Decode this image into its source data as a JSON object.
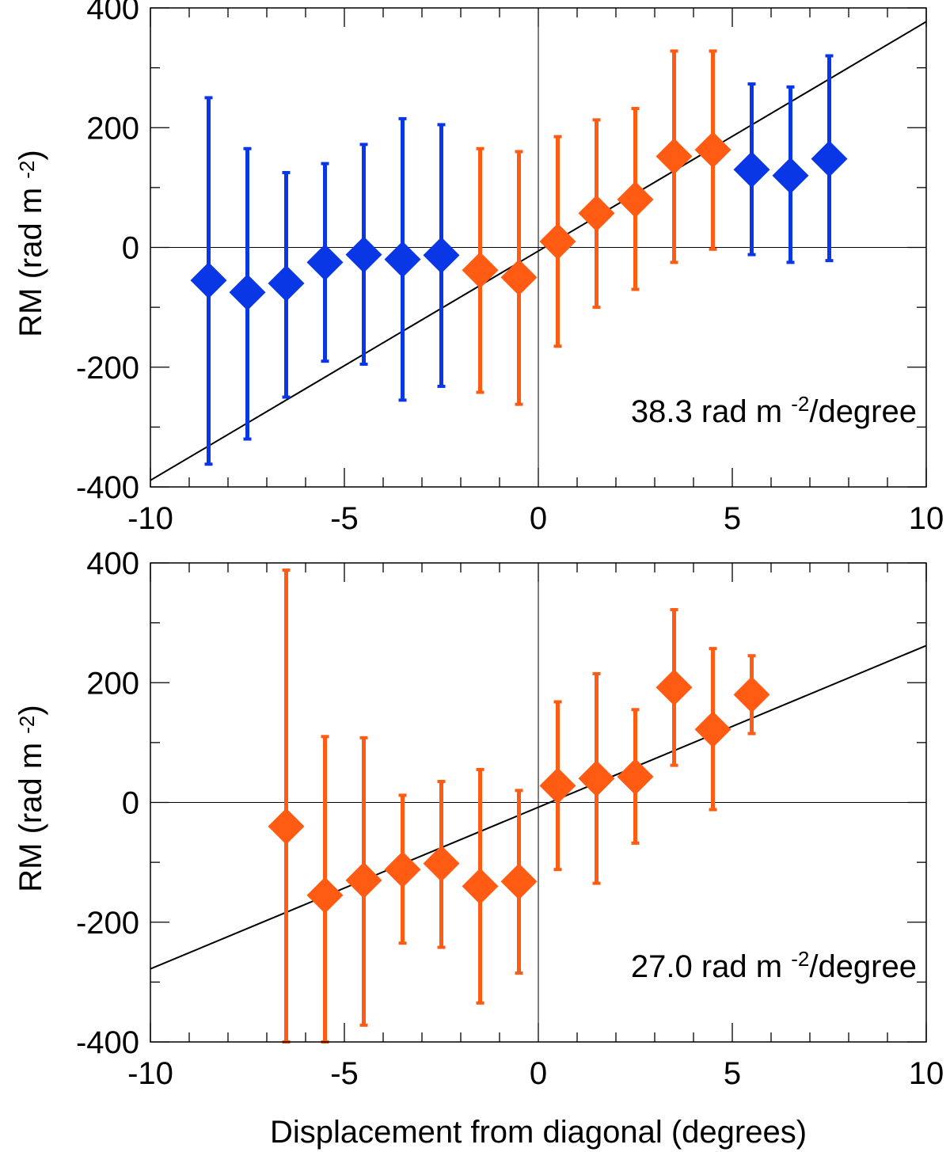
{
  "colors": {
    "blue": "#0a37e6",
    "orange": "#ff5b12",
    "axis": "#000000"
  },
  "shared_xlabel": "Displacement from diagonal (degrees)",
  "chart_data": [
    {
      "type": "scatter",
      "title": "",
      "xlabel": "",
      "ylabel": "RM (rad m -2)",
      "ylabel_parts": {
        "main": "RM (rad m",
        "sup": "-2",
        "close": ")"
      },
      "xlim": [
        -10,
        10
      ],
      "ylim": [
        -400,
        400
      ],
      "xticks": [
        -10,
        -5,
        0,
        5,
        10
      ],
      "yticks": [
        -400,
        -200,
        0,
        200,
        400
      ],
      "zero_lines": true,
      "annotation": {
        "value": "38.3",
        "unit_main": "rad m",
        "unit_sup": "-2",
        "unit_tail": "/degree"
      },
      "fit_line": {
        "slope": 38.3,
        "intercept": -6
      },
      "points": [
        {
          "x": -8.5,
          "y": -55,
          "low": -362,
          "high": 250,
          "color": "blue"
        },
        {
          "x": -7.5,
          "y": -75,
          "low": -320,
          "high": 165,
          "color": "blue"
        },
        {
          "x": -6.5,
          "y": -60,
          "low": -250,
          "high": 125,
          "color": "blue"
        },
        {
          "x": -5.5,
          "y": -25,
          "low": -190,
          "high": 140,
          "color": "blue"
        },
        {
          "x": -4.5,
          "y": -12,
          "low": -195,
          "high": 172,
          "color": "blue"
        },
        {
          "x": -3.5,
          "y": -20,
          "low": -255,
          "high": 215,
          "color": "blue"
        },
        {
          "x": -2.5,
          "y": -13,
          "low": -232,
          "high": 205,
          "color": "blue"
        },
        {
          "x": -1.5,
          "y": -38,
          "low": -242,
          "high": 165,
          "color": "orange"
        },
        {
          "x": -0.5,
          "y": -50,
          "low": -262,
          "high": 160,
          "color": "orange"
        },
        {
          "x": 0.5,
          "y": 10,
          "low": -165,
          "high": 185,
          "color": "orange"
        },
        {
          "x": 1.5,
          "y": 57,
          "low": -100,
          "high": 213,
          "color": "orange"
        },
        {
          "x": 2.5,
          "y": 80,
          "low": -70,
          "high": 232,
          "color": "orange"
        },
        {
          "x": 3.5,
          "y": 152,
          "low": -25,
          "high": 328,
          "color": "orange"
        },
        {
          "x": 4.5,
          "y": 163,
          "low": -3,
          "high": 328,
          "color": "orange"
        },
        {
          "x": 5.5,
          "y": 130,
          "low": -12,
          "high": 273,
          "color": "blue"
        },
        {
          "x": 6.5,
          "y": 120,
          "low": -25,
          "high": 268,
          "color": "blue"
        },
        {
          "x": 7.5,
          "y": 148,
          "low": -22,
          "high": 320,
          "color": "blue"
        }
      ]
    },
    {
      "type": "scatter",
      "title": "",
      "xlabel": "Displacement from diagonal (degrees)",
      "ylabel": "RM (rad m -2)",
      "ylabel_parts": {
        "main": "RM (rad m",
        "sup": "-2",
        "close": ")"
      },
      "xlim": [
        -10,
        10
      ],
      "ylim": [
        -400,
        400
      ],
      "xticks": [
        -10,
        -5,
        0,
        5,
        10
      ],
      "yticks": [
        -400,
        -200,
        0,
        200,
        400
      ],
      "zero_lines": true,
      "annotation": {
        "value": "27.0",
        "unit_main": "rad m",
        "unit_sup": "-2",
        "unit_tail": "/degree"
      },
      "fit_line": {
        "slope": 27.0,
        "intercept": -8
      },
      "points": [
        {
          "x": -6.5,
          "y": -40,
          "low": -400,
          "high": 388,
          "color": "orange"
        },
        {
          "x": -5.5,
          "y": -155,
          "low": -400,
          "high": 110,
          "color": "orange"
        },
        {
          "x": -4.5,
          "y": -130,
          "low": -372,
          "high": 108,
          "color": "orange"
        },
        {
          "x": -3.5,
          "y": -112,
          "low": -235,
          "high": 12,
          "color": "orange"
        },
        {
          "x": -2.5,
          "y": -102,
          "low": -242,
          "high": 35,
          "color": "orange"
        },
        {
          "x": -1.5,
          "y": -140,
          "low": -335,
          "high": 55,
          "color": "orange"
        },
        {
          "x": -0.5,
          "y": -132,
          "low": -285,
          "high": 20,
          "color": "orange"
        },
        {
          "x": 0.5,
          "y": 28,
          "low": -112,
          "high": 168,
          "color": "orange"
        },
        {
          "x": 1.5,
          "y": 40,
          "low": -135,
          "high": 215,
          "color": "orange"
        },
        {
          "x": 2.5,
          "y": 43,
          "low": -68,
          "high": 155,
          "color": "orange"
        },
        {
          "x": 3.5,
          "y": 192,
          "low": 62,
          "high": 322,
          "color": "orange"
        },
        {
          "x": 4.5,
          "y": 122,
          "low": -12,
          "high": 257,
          "color": "orange"
        },
        {
          "x": 5.5,
          "y": 180,
          "low": 115,
          "high": 245,
          "color": "orange"
        }
      ]
    }
  ]
}
